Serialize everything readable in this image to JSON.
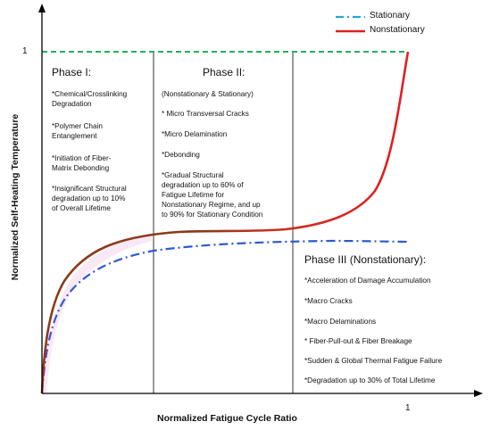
{
  "legend": [
    {
      "label": "Stationary",
      "color": "#22a6d6",
      "style": "dash-dot"
    },
    {
      "label": "Nonstationary",
      "color": "#e02020",
      "style": "solid"
    }
  ],
  "axes": {
    "xlabel": "Normalized Fatigue Cycle Ratio",
    "ylabel": "Normalized Self-Heating Temperature",
    "x_tick": "1",
    "y_tick": "1"
  },
  "phases": [
    {
      "title": "Phase I:",
      "items": [
        [
          "*Chemical/Crosslinking",
          "Degradation"
        ],
        [
          "*Polymer Chain",
          "Entanglement"
        ],
        [
          "*Initiation of Fiber-",
          "Matrix Debonding"
        ],
        [
          "*Insignificant Structural",
          "degradation up to 10%",
          "of Overall Lifetime"
        ]
      ]
    },
    {
      "title": "Phase II:",
      "items": [
        [
          "(Nonstationary & Stationary)"
        ],
        [
          "* Micro Transversal Cracks"
        ],
        [
          "*Micro Delamination"
        ],
        [
          "*Debonding"
        ],
        [
          "*Gradual Structural",
          "degradation up to 60% of",
          "Fatigue Lifetime for",
          "Nonstationary Regime, and up",
          "to 90% for Stationary Condition"
        ]
      ]
    },
    {
      "title": "Phase III (Nonstationary):",
      "items": [
        [
          "*Acceleration of Damage Accumulation"
        ],
        [
          "*Macro Cracks"
        ],
        [
          "*Macro Delaminations"
        ],
        [
          "* Fiber-Pull-out & Fiber Breakage"
        ],
        [
          "*Sudden & Global Thermal Fatigue Failure"
        ],
        [
          "*Degradation up to 30% of Total Lifetime"
        ]
      ]
    }
  ],
  "colors": {
    "axis": "#000000",
    "reference_line": "#22b05a",
    "divider": "#333333",
    "stationary": "#22a6d6",
    "stationary_start": "#7a2ad8",
    "nonstationary": "#e02020",
    "nonstationary_start": "#8b3a1a"
  }
}
